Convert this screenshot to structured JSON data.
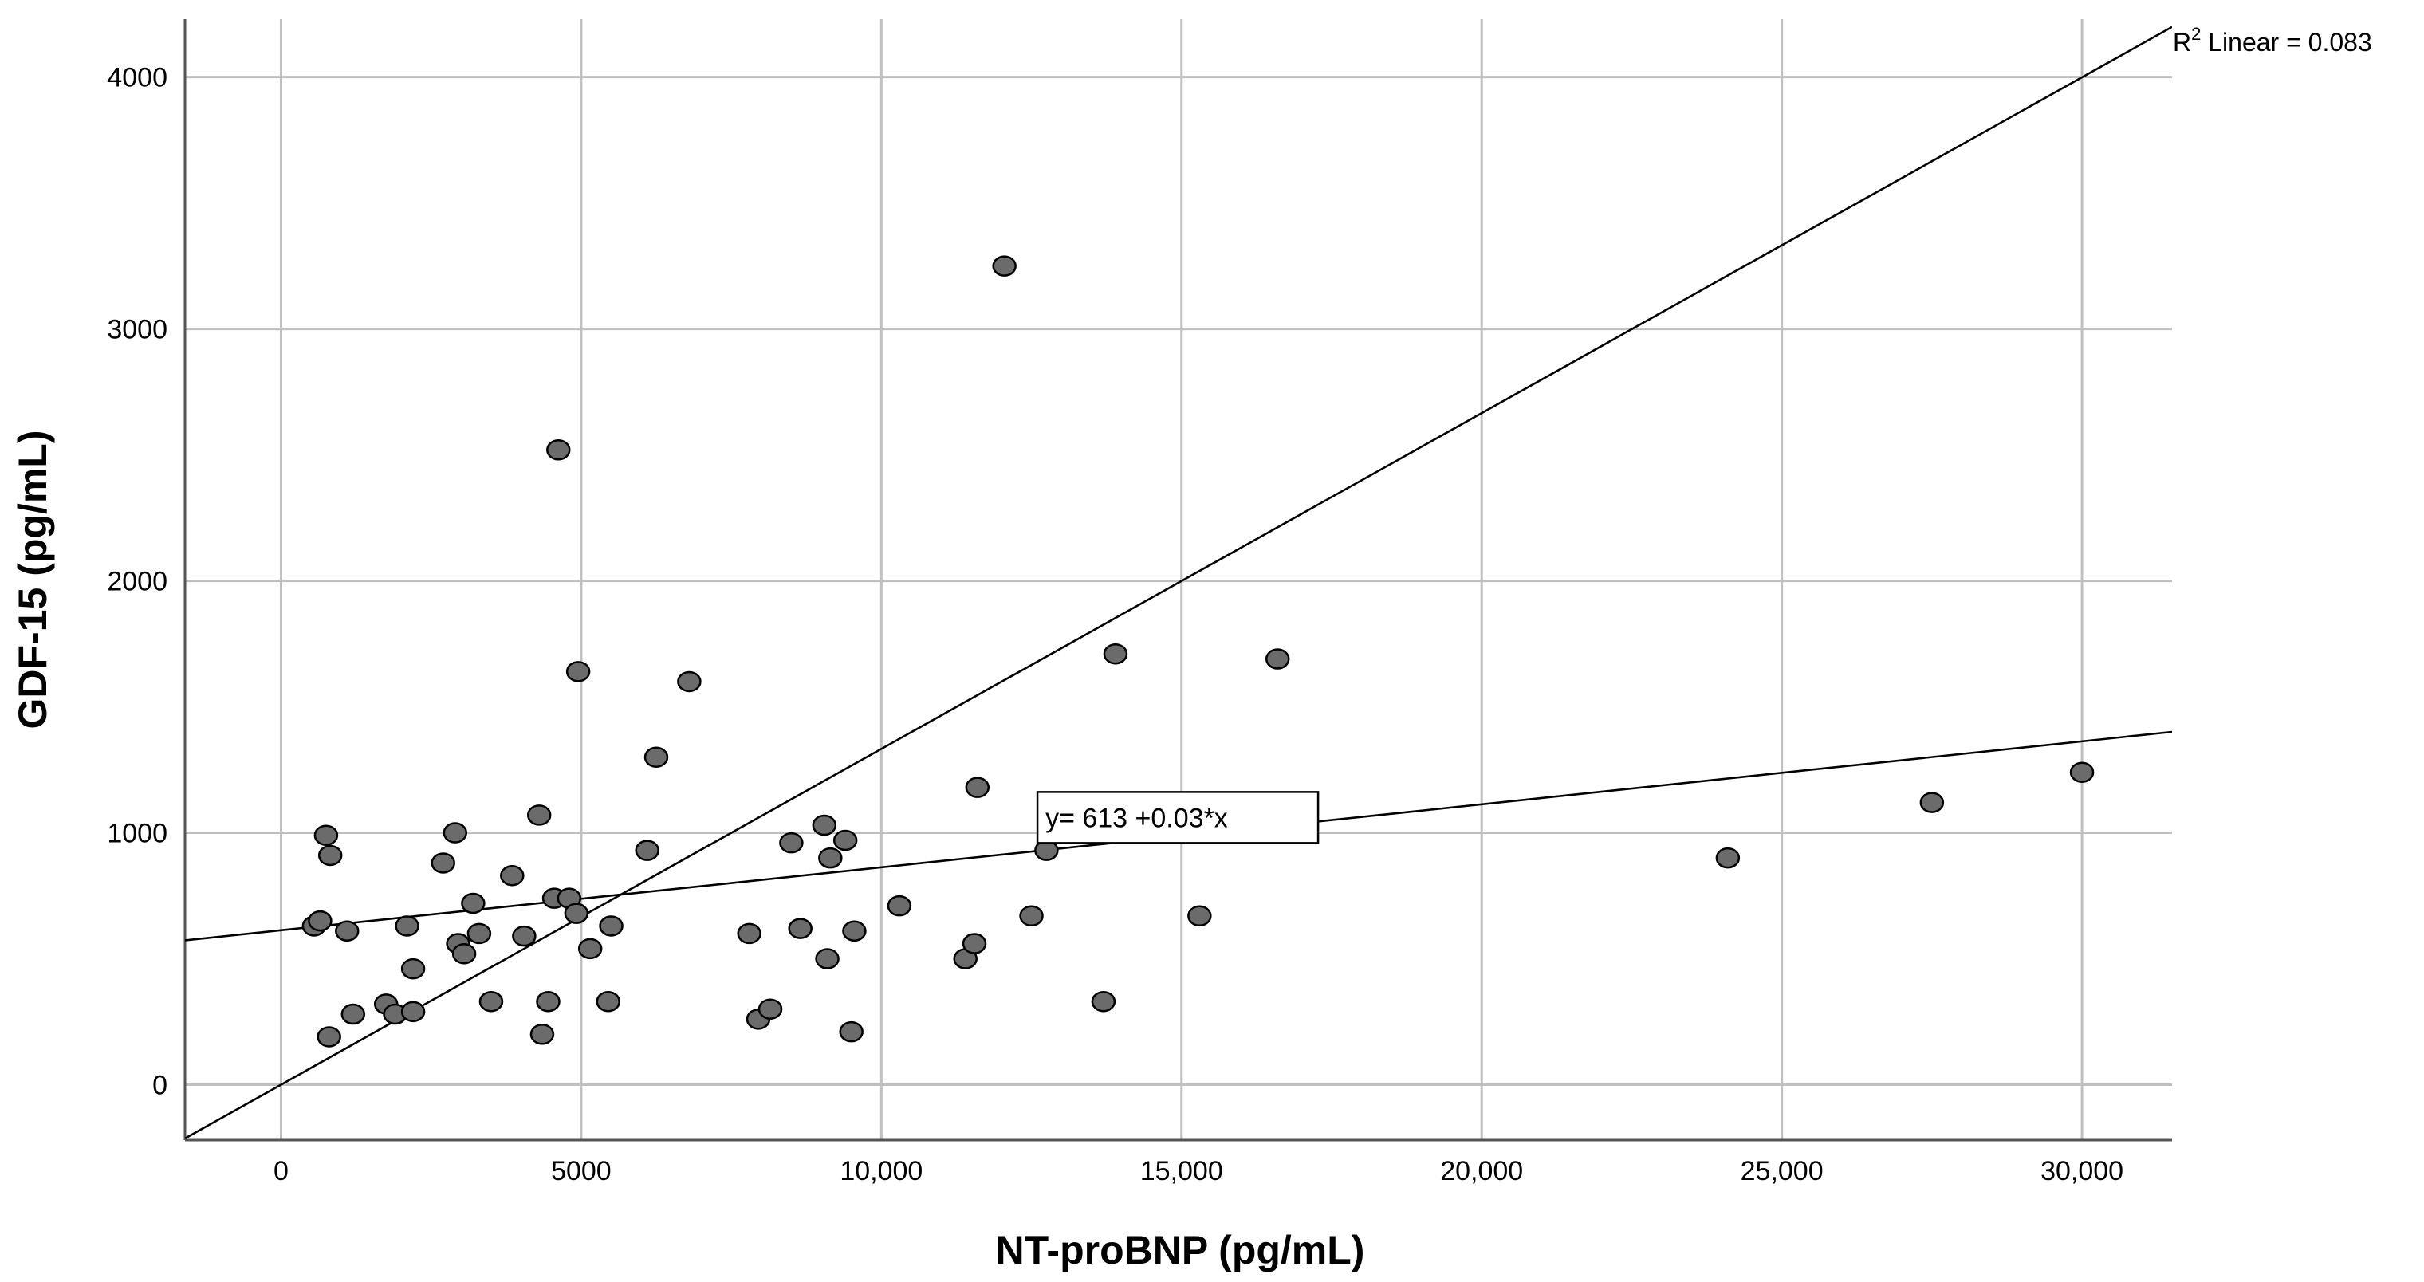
{
  "chart_data": {
    "type": "scatter",
    "xlabel": "NT-proBNP (pg/mL)",
    "ylabel": "GDF-15 (pg/mL)",
    "xlim": [
      -1600,
      31500
    ],
    "ylim": [
      -220,
      4230
    ],
    "x_ticks": [
      0,
      5000,
      10000,
      15000,
      20000,
      25000,
      30000
    ],
    "x_tick_labels": [
      "0",
      "5000",
      "10,000",
      "15,000",
      "20,000",
      "25,000",
      "30,000"
    ],
    "y_ticks": [
      0,
      1000,
      2000,
      3000,
      4000
    ],
    "y_tick_labels": [
      "0",
      "1000",
      "2000",
      "3000",
      "4000"
    ],
    "grid": true,
    "r2_label": {
      "prefix": "R",
      "superscript": "2",
      "text": " Linear = 0.083"
    },
    "equation_label": "y= 613 +0.03*x",
    "equation_anchor": {
      "x": 12600,
      "y": 1010
    },
    "fit_line": {
      "intercept": 613,
      "slope": 0.025
    },
    "reference_line": {
      "intercept": 0,
      "slope": 0.1333
    },
    "points": [
      {
        "x": 550,
        "y": 630
      },
      {
        "x": 650,
        "y": 650
      },
      {
        "x": 750,
        "y": 990
      },
      {
        "x": 800,
        "y": 190
      },
      {
        "x": 820,
        "y": 910
      },
      {
        "x": 1100,
        "y": 610
      },
      {
        "x": 1200,
        "y": 280
      },
      {
        "x": 1750,
        "y": 320
      },
      {
        "x": 1900,
        "y": 280
      },
      {
        "x": 2100,
        "y": 630
      },
      {
        "x": 2200,
        "y": 290
      },
      {
        "x": 2200,
        "y": 460
      },
      {
        "x": 2700,
        "y": 880
      },
      {
        "x": 2900,
        "y": 1000
      },
      {
        "x": 2950,
        "y": 560
      },
      {
        "x": 3050,
        "y": 520
      },
      {
        "x": 3200,
        "y": 720
      },
      {
        "x": 3300,
        "y": 600
      },
      {
        "x": 3500,
        "y": 330
      },
      {
        "x": 3850,
        "y": 830
      },
      {
        "x": 4050,
        "y": 590
      },
      {
        "x": 4300,
        "y": 1070
      },
      {
        "x": 4350,
        "y": 200
      },
      {
        "x": 4450,
        "y": 330
      },
      {
        "x": 4550,
        "y": 740
      },
      {
        "x": 4620,
        "y": 2520
      },
      {
        "x": 4800,
        "y": 740
      },
      {
        "x": 4920,
        "y": 680
      },
      {
        "x": 4950,
        "y": 1640
      },
      {
        "x": 5150,
        "y": 540
      },
      {
        "x": 5450,
        "y": 330
      },
      {
        "x": 5500,
        "y": 630
      },
      {
        "x": 6100,
        "y": 930
      },
      {
        "x": 6250,
        "y": 1300
      },
      {
        "x": 6800,
        "y": 1600
      },
      {
        "x": 7800,
        "y": 600
      },
      {
        "x": 7950,
        "y": 260
      },
      {
        "x": 8150,
        "y": 300
      },
      {
        "x": 8500,
        "y": 960
      },
      {
        "x": 8650,
        "y": 620
      },
      {
        "x": 9050,
        "y": 1030
      },
      {
        "x": 9100,
        "y": 500
      },
      {
        "x": 9150,
        "y": 900
      },
      {
        "x": 9400,
        "y": 970
      },
      {
        "x": 9500,
        "y": 210
      },
      {
        "x": 9550,
        "y": 610
      },
      {
        "x": 10300,
        "y": 710
      },
      {
        "x": 11400,
        "y": 500
      },
      {
        "x": 11550,
        "y": 560
      },
      {
        "x": 11600,
        "y": 1180
      },
      {
        "x": 12050,
        "y": 3250
      },
      {
        "x": 12500,
        "y": 670
      },
      {
        "x": 12750,
        "y": 930
      },
      {
        "x": 13700,
        "y": 330
      },
      {
        "x": 13900,
        "y": 1710
      },
      {
        "x": 15300,
        "y": 670
      },
      {
        "x": 16600,
        "y": 1690
      },
      {
        "x": 24100,
        "y": 900
      },
      {
        "x": 27500,
        "y": 1120
      },
      {
        "x": 30000,
        "y": 1240
      }
    ]
  }
}
